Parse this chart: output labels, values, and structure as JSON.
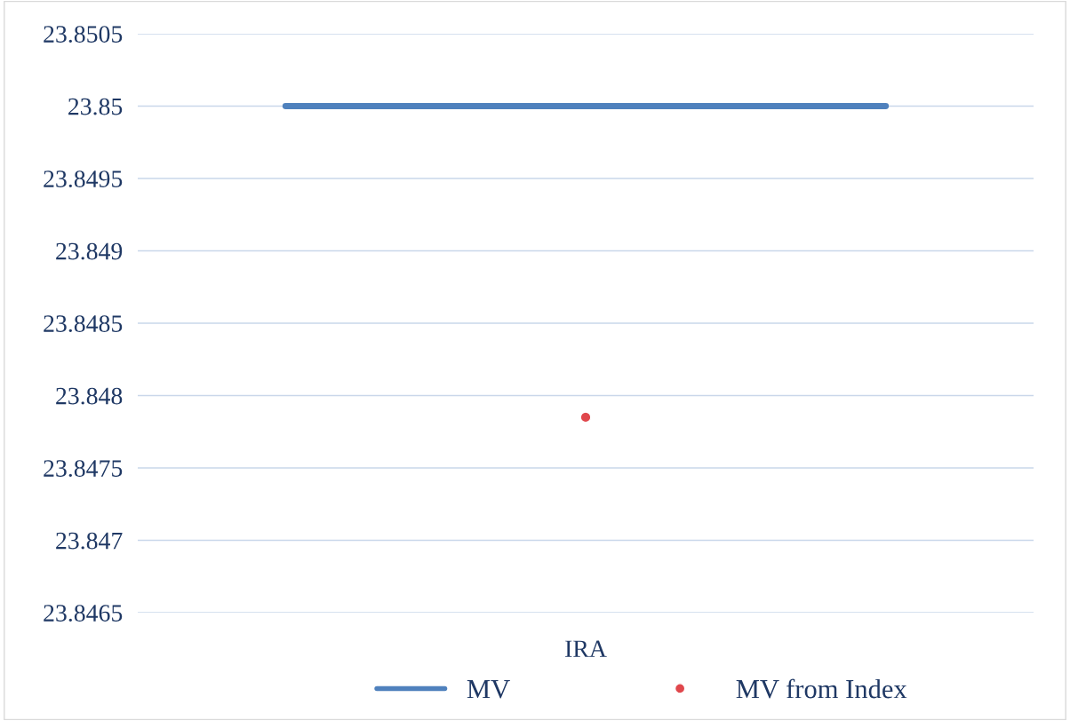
{
  "chart_data": {
    "type": "scatter",
    "categories": [
      "IRA"
    ],
    "series": [
      {
        "name": "MV from Index",
        "color": "#e0474c",
        "values": [
          23.84785
        ]
      }
    ],
    "ref_lines": [
      {
        "axis": "y",
        "value": 23.85,
        "label": "MV",
        "color": "#4f81bd"
      }
    ],
    "ylim": [
      23.8465,
      23.8505
    ],
    "yticks": [
      23.8465,
      23.847,
      23.8475,
      23.848,
      23.8485,
      23.849,
      23.8495,
      23.85,
      23.8505
    ],
    "grid": "y",
    "legend": "bottom",
    "marker": "circle"
  }
}
